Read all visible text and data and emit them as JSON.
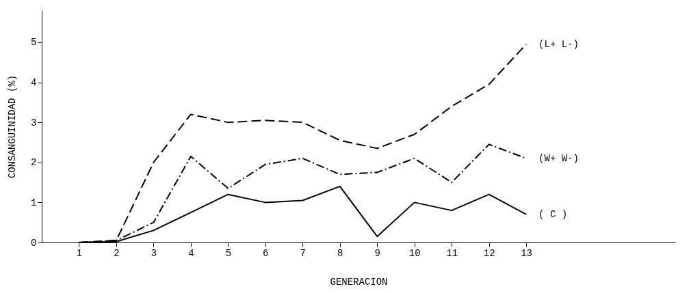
{
  "chart_data": {
    "type": "line",
    "xlabel": "GENERACION",
    "ylabel": "CONSANGUINIDAD (%)",
    "x": [
      1,
      2,
      3,
      4,
      5,
      6,
      7,
      8,
      9,
      10,
      11,
      12,
      13
    ],
    "xlim": [
      0,
      17
    ],
    "xticks": [
      1,
      2,
      3,
      4,
      5,
      6,
      7,
      8,
      9,
      10,
      11,
      12,
      13
    ],
    "ylim": [
      0,
      5.8
    ],
    "yticks": [
      0,
      1,
      2,
      3,
      4,
      5
    ],
    "grid": false,
    "legend": false,
    "marker": "none",
    "series": [
      {
        "name": "(L+ L-)",
        "color": "#000000",
        "line_style": "dashed",
        "values": [
          0,
          0.05,
          2.0,
          3.2,
          3.0,
          3.05,
          3.0,
          2.55,
          2.35,
          2.7,
          3.4,
          3.95,
          4.95
        ]
      },
      {
        "name": "(W+ W-)",
        "color": "#000000",
        "line_style": "dashdot",
        "values": [
          0,
          0.05,
          0.5,
          2.15,
          1.35,
          1.95,
          2.1,
          1.7,
          1.75,
          2.1,
          1.5,
          2.45,
          2.1
        ]
      },
      {
        "name": "( C )",
        "color": "#000000",
        "line_style": "solid",
        "values": [
          0,
          0.02,
          0.3,
          0.75,
          1.2,
          1.0,
          1.05,
          1.4,
          0.15,
          1.0,
          0.8,
          1.2,
          0.7
        ]
      }
    ]
  }
}
